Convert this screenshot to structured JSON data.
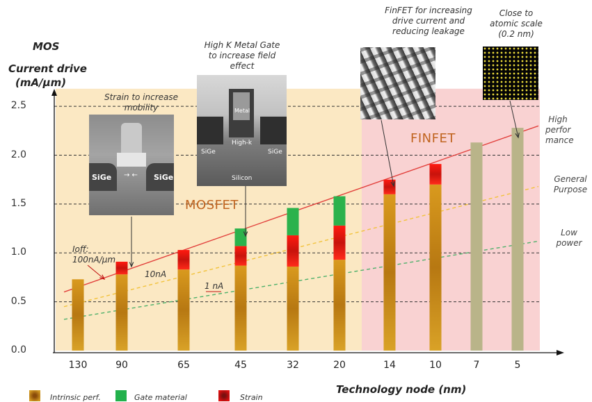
{
  "chart_data": {
    "type": "bar",
    "title": "",
    "ylabel_top": "MOS",
    "ylabel": "Current drive",
    "yunit": "(mA/µm)",
    "xlabel": "Technology node (nm)",
    "categories": [
      "130",
      "90",
      "65",
      "45",
      "32",
      "20",
      "14",
      "10",
      "7",
      "5"
    ],
    "ylim": [
      0,
      2.7
    ],
    "yticks": [
      "0.0",
      "0.5",
      "1.0",
      "1.5",
      "2.0",
      "2.5"
    ],
    "series": [
      {
        "name": "Intrinsic perf.",
        "color": "#c58a17",
        "values": [
          0.73,
          0.78,
          0.83,
          0.87,
          0.86,
          0.93,
          1.6,
          1.7,
          0,
          0
        ]
      },
      {
        "name": "Strain",
        "color": "#e0170f",
        "values": [
          0,
          0.13,
          0.2,
          0.2,
          0.32,
          0.35,
          0.15,
          0.21,
          0,
          0
        ]
      },
      {
        "name": "Gate material",
        "color": "#2bb24c",
        "values": [
          0,
          0,
          0,
          0.18,
          0.28,
          0.3,
          0,
          0,
          0,
          0
        ]
      },
      {
        "name": "",
        "color": "#b9b489",
        "values": [
          0,
          0,
          0,
          0,
          0,
          0,
          0,
          0,
          2.13,
          2.28
        ]
      }
    ],
    "trend_lines": [
      {
        "label": "High perfor mance",
        "color": "#e2403c",
        "start": 0.6,
        "end": 2.3
      },
      {
        "label": "General Purpose",
        "color": "#f2c23a",
        "start": 0.45,
        "end": 1.68
      },
      {
        "label": "Low power",
        "color": "#4db06a",
        "start": 0.32,
        "end": 1.12
      }
    ],
    "regions": [
      {
        "label": "MOSFET",
        "from": "130",
        "to": "20",
        "color": "#fbe8c3"
      },
      {
        "label": "FINFET",
        "from": "14",
        "to": "5",
        "color": "#f9d2d2"
      }
    ],
    "grid": true,
    "annotations": {
      "ioff": "Ioff:\n100nA/µm",
      "ioff_10": "10nA",
      "ioff_1": "1 nA",
      "strain": "Strain to increase\nmobility",
      "hkmg": "High K Metal Gate\nto increase field\neffect",
      "finfet": "FinFET for increasing\ndrive current and\nreducing leakage",
      "atomic": "Close to\natomic scale\n(0.2 nm)"
    },
    "image_labels": {
      "sige_left": "SiGe",
      "sige_right": "SiGe",
      "hk_metal": "Metal",
      "hk_highk": "High-k",
      "hk_sige_left": "SiGe",
      "hk_sige_right": "SiGe",
      "hk_silicon": "Silicon"
    },
    "legend": [
      "Intrinsic perf.",
      "Gate material",
      "Strain"
    ]
  }
}
